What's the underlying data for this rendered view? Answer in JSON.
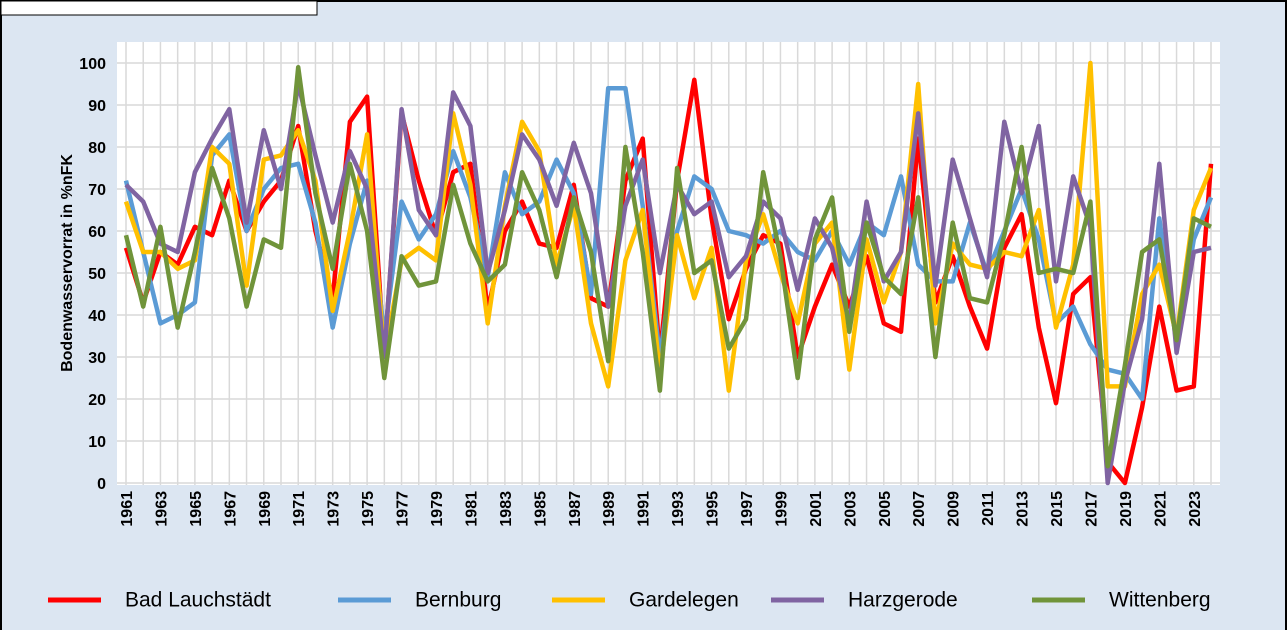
{
  "chart_data": {
    "type": "line",
    "y_label": "Bodenwasservorrat in %nFK",
    "categories": [
      "1961",
      null,
      "1963",
      null,
      "1965",
      null,
      "1967",
      null,
      "1969",
      null,
      "1971",
      null,
      "1973",
      null,
      "1975",
      null,
      "1977",
      null,
      "1979",
      null,
      "1981",
      null,
      "1983",
      null,
      "1985",
      null,
      "1987",
      null,
      "1989",
      null,
      "1991",
      null,
      "1993",
      null,
      "1995",
      null,
      "1997",
      null,
      "1999",
      null,
      "2001",
      null,
      "2003",
      null,
      "2005",
      null,
      "2007",
      null,
      "2009",
      null,
      "2011",
      null,
      "2013",
      null,
      "2015",
      null,
      "2017",
      null,
      "2019",
      null,
      "2021",
      null,
      "2023",
      null
    ],
    "series": [
      {
        "name": "Bad Lauchstädt",
        "color": "#ff0000",
        "values": [
          56,
          43,
          55,
          52,
          61,
          59,
          72,
          60,
          67,
          72,
          85,
          60,
          44,
          86,
          92,
          30,
          88,
          72,
          59,
          74,
          76,
          41,
          60,
          67,
          57,
          56,
          71,
          44,
          42,
          72,
          82,
          30,
          72,
          96,
          63,
          39,
          51,
          59,
          57,
          30,
          42,
          52,
          42,
          54,
          38,
          36,
          82,
          43,
          54,
          42,
          32,
          56,
          64,
          37,
          19,
          45,
          49,
          5,
          0,
          18,
          42,
          22,
          23,
          76
        ]
      },
      {
        "name": "Bernburg",
        "color": "#5b9bd5",
        "values": [
          72,
          55,
          38,
          40,
          43,
          78,
          83,
          60,
          70,
          75,
          76,
          62,
          37,
          57,
          72,
          35,
          67,
          58,
          64,
          79,
          68,
          49,
          74,
          64,
          67,
          77,
          69,
          45,
          94,
          94,
          66,
          30,
          60,
          73,
          70,
          60,
          59,
          57,
          60,
          55,
          53,
          60,
          52,
          62,
          59,
          73,
          52,
          48,
          48,
          62,
          50,
          60,
          70,
          58,
          38,
          42,
          33,
          27,
          26,
          20,
          63,
          33,
          58,
          68
        ]
      },
      {
        "name": "Gardelegen",
        "color": "#ffc000",
        "values": [
          67,
          55,
          55,
          51,
          53,
          80,
          76,
          47,
          77,
          78,
          84,
          72,
          41,
          60,
          83,
          30,
          53,
          56,
          53,
          88,
          71,
          38,
          66,
          86,
          79,
          52,
          66,
          38,
          23,
          53,
          65,
          26,
          59,
          44,
          56,
          22,
          53,
          64,
          50,
          38,
          57,
          62,
          27,
          58,
          43,
          55,
          95,
          38,
          57,
          52,
          51,
          55,
          54,
          65,
          37,
          52,
          100,
          23,
          23,
          45,
          52,
          35,
          65,
          75
        ]
      },
      {
        "name": "Harzgerode",
        "color": "#8064a2",
        "values": [
          71,
          67,
          57,
          55,
          74,
          82,
          89,
          62,
          84,
          70,
          95,
          78,
          62,
          79,
          70,
          30,
          89,
          65,
          59,
          93,
          85,
          50,
          65,
          83,
          77,
          66,
          81,
          69,
          42,
          66,
          77,
          50,
          71,
          64,
          67,
          49,
          54,
          67,
          63,
          46,
          63,
          56,
          38,
          67,
          48,
          55,
          88,
          47,
          77,
          63,
          49,
          86,
          69,
          85,
          48,
          73,
          61,
          0,
          24,
          39,
          76,
          31,
          55,
          56
        ]
      },
      {
        "name": "Wittenberg",
        "color": "#70943a",
        "values": [
          59,
          42,
          61,
          37,
          55,
          75,
          63,
          42,
          58,
          56,
          99,
          69,
          51,
          76,
          60,
          25,
          54,
          47,
          48,
          71,
          57,
          48,
          52,
          74,
          65,
          49,
          68,
          55,
          29,
          80,
          55,
          22,
          75,
          50,
          53,
          32,
          39,
          74,
          54,
          25,
          58,
          68,
          36,
          62,
          49,
          45,
          68,
          30,
          62,
          44,
          43,
          59,
          80,
          50,
          51,
          50,
          67,
          4,
          28,
          55,
          58,
          34,
          63,
          61
        ]
      }
    ],
    "ylim": [
      0,
      100
    ],
    "yticks": [
      0,
      10,
      20,
      30,
      40,
      50,
      60,
      70,
      80,
      90,
      100
    ],
    "grid": true,
    "legend": "bottom"
  }
}
